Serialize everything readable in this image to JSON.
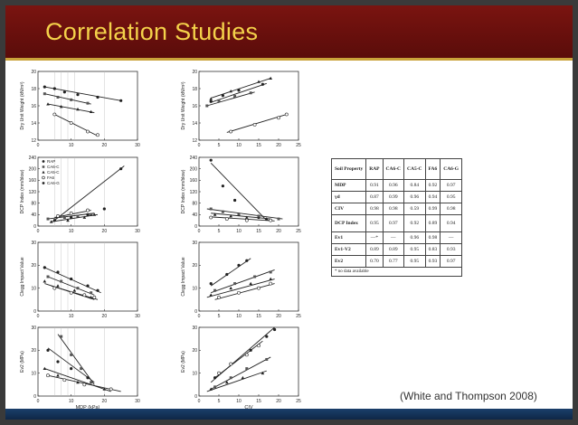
{
  "slide": {
    "title": "Correlation Studies"
  },
  "colors": {
    "title_bar": "#7a1410",
    "title_text": "#f4d24a",
    "accent_line": "#c9a23a",
    "footer_bar": "#1b3f6b"
  },
  "citation": "(White and Thompson 2008)",
  "table": {
    "headers": [
      "Soil Property",
      "RAP",
      "CA6-C",
      "CA5-C",
      "FA6",
      "CA6-G"
    ],
    "rows": [
      [
        "MDP",
        "0.91",
        "0.96",
        "0.84",
        "0.92",
        "0.97"
      ],
      [
        "γd",
        "0.87",
        "0.99",
        "0.96",
        "0.94",
        "0.95"
      ],
      [
        "CIV",
        "0.98",
        "0.98",
        "0.59",
        "0.99",
        "0.98"
      ],
      [
        "DCP Index",
        "0.95",
        "0.97",
        "0.92",
        "0.89",
        "0.94"
      ],
      [
        "Ev1",
        "—*",
        "—",
        "0.96",
        "0.98",
        "—"
      ],
      [
        "Ev1-V2",
        "0.89",
        "0.89",
        "0.95",
        "0.83",
        "0.93"
      ],
      [
        "Ev2",
        "0.70",
        "0.77",
        "0.95",
        "0.93",
        "0.97"
      ]
    ],
    "footnote": "* no data available"
  },
  "chart_data": [
    {
      "type": "scatter",
      "xlabel": "",
      "ylabel": "Dry Unit Weight (kN/m³)",
      "xlim": [
        0,
        30
      ],
      "ylim": [
        12,
        20
      ],
      "xticks": [
        0,
        10,
        20,
        30
      ],
      "yticks": [
        12,
        14,
        16,
        18,
        20
      ],
      "series": [
        {
          "points": [
            [
              2,
              18.2
            ],
            [
              5,
              18.0
            ],
            [
              8,
              17.6
            ],
            [
              12,
              17.3
            ],
            [
              18,
              17.0
            ],
            [
              25,
              16.6
            ]
          ],
          "fit": [
            [
              2,
              18.2
            ],
            [
              25,
              16.6
            ]
          ]
        },
        {
          "points": [
            [
              2,
              17.4
            ],
            [
              6,
              17.0
            ],
            [
              10,
              16.7
            ],
            [
              15,
              16.3
            ]
          ],
          "fit": [
            [
              2,
              17.4
            ],
            [
              16,
              16.2
            ]
          ]
        },
        {
          "points": [
            [
              3,
              16.2
            ],
            [
              7,
              15.9
            ],
            [
              12,
              15.6
            ],
            [
              16,
              15.3
            ]
          ],
          "fit": [
            [
              3,
              16.2
            ],
            [
              17,
              15.2
            ]
          ]
        },
        {
          "points": [
            [
              5,
              15.0
            ],
            [
              10,
              14.0
            ],
            [
              15,
              13.0
            ],
            [
              18,
              12.6
            ]
          ],
          "fit": [
            [
              5,
              15.0
            ],
            [
              18,
              12.5
            ]
          ]
        }
      ]
    },
    {
      "type": "scatter",
      "xlabel": "",
      "ylabel": "Dry Unit Weight (kN/m³)",
      "xlim": [
        0,
        25
      ],
      "ylim": [
        12,
        20
      ],
      "xticks": [
        0,
        5,
        10,
        15,
        20,
        25
      ],
      "yticks": [
        12,
        14,
        16,
        18,
        20
      ],
      "series": [
        {
          "points": [
            [
              3,
              16.5
            ],
            [
              6,
              17.2
            ],
            [
              10,
              17.8
            ],
            [
              16,
              18.5
            ]
          ],
          "fit": [
            [
              3,
              16.4
            ],
            [
              17,
              18.6
            ]
          ]
        },
        {
          "points": [
            [
              2,
              16.0
            ],
            [
              5,
              16.6
            ],
            [
              9,
              17.1
            ],
            [
              13,
              17.5
            ]
          ],
          "fit": [
            [
              2,
              16.0
            ],
            [
              14,
              17.6
            ]
          ]
        },
        {
          "points": [
            [
              3,
              16.8
            ],
            [
              8,
              17.7
            ],
            [
              15,
              18.8
            ],
            [
              18,
              19.2
            ]
          ],
          "fit": [
            [
              3,
              16.9
            ],
            [
              18,
              19.2
            ]
          ]
        },
        {
          "points": [
            [
              8,
              13.0
            ],
            [
              14,
              13.8
            ],
            [
              20,
              14.6
            ],
            [
              22,
              15.0
            ]
          ],
          "fit": [
            [
              7,
              12.9
            ],
            [
              22,
              15.0
            ]
          ]
        }
      ]
    },
    {
      "type": "scatter",
      "xlabel": "",
      "ylabel": "DCP Index (mm/blow)",
      "xlim": [
        0,
        30
      ],
      "ylim": [
        0,
        240
      ],
      "xticks": [
        0,
        10,
        20,
        30
      ],
      "yticks": [
        0,
        40,
        80,
        120,
        160,
        200,
        240
      ],
      "legend": [
        "RAP",
        "CA6-C",
        "CA5-C",
        "FA6",
        "CA6-G"
      ],
      "series": [
        {
          "points": [
            [
              5,
              20
            ],
            [
              10,
              30
            ],
            [
              15,
              40
            ],
            [
              20,
              60
            ],
            [
              25,
              200
            ]
          ],
          "fit": [
            [
              5,
              20
            ],
            [
              26,
              210
            ]
          ]
        },
        {
          "points": [
            [
              3,
              25
            ],
            [
              8,
              30
            ],
            [
              12,
              35
            ],
            [
              16,
              40
            ]
          ],
          "fit": [
            [
              3,
              25
            ],
            [
              17,
              45
            ]
          ]
        },
        {
          "points": [
            [
              4,
              15
            ],
            [
              9,
              20
            ],
            [
              14,
              30
            ],
            [
              17,
              40
            ]
          ],
          "fit": [
            [
              4,
              15
            ],
            [
              18,
              40
            ]
          ]
        },
        {
          "points": [
            [
              6,
              35
            ],
            [
              10,
              45
            ],
            [
              15,
              55
            ]
          ],
          "fit": [
            [
              5,
              30
            ],
            [
              16,
              55
            ]
          ]
        }
      ]
    },
    {
      "type": "scatter",
      "xlabel": "",
      "ylabel": "DCP Index (mm/blow)",
      "xlim": [
        0,
        25
      ],
      "ylim": [
        0,
        240
      ],
      "xticks": [
        0,
        5,
        10,
        15,
        20,
        25
      ],
      "yticks": [
        0,
        40,
        80,
        120,
        160,
        200,
        240
      ],
      "series": [
        {
          "points": [
            [
              3,
              230
            ],
            [
              6,
              140
            ],
            [
              9,
              90
            ],
            [
              15,
              30
            ]
          ],
          "fit": [
            [
              3,
              220
            ],
            [
              17,
              20
            ]
          ]
        },
        {
          "points": [
            [
              3,
              60
            ],
            [
              6,
              50
            ],
            [
              10,
              40
            ],
            [
              15,
              35
            ],
            [
              20,
              25
            ]
          ],
          "fit": [
            [
              2,
              60
            ],
            [
              21,
              25
            ]
          ]
        },
        {
          "points": [
            [
              4,
              40
            ],
            [
              8,
              35
            ],
            [
              12,
              30
            ],
            [
              17,
              25
            ]
          ],
          "fit": [
            [
              3,
              45
            ],
            [
              18,
              25
            ]
          ]
        },
        {
          "points": [
            [
              3,
              30
            ],
            [
              7,
              25
            ],
            [
              12,
              20
            ],
            [
              18,
              20
            ]
          ],
          "fit": [
            [
              3,
              32
            ],
            [
              19,
              18
            ]
          ]
        }
      ]
    },
    {
      "type": "scatter",
      "xlabel": "",
      "ylabel": "Clegg Impact Value",
      "xlim": [
        0,
        30
      ],
      "ylim": [
        0,
        30
      ],
      "xticks": [
        0,
        10,
        20,
        30
      ],
      "yticks": [
        0,
        10,
        20,
        30
      ],
      "series": [
        {
          "points": [
            [
              2,
              19
            ],
            [
              6,
              17
            ],
            [
              10,
              14
            ],
            [
              15,
              11
            ],
            [
              18,
              9
            ]
          ],
          "fit": [
            [
              2,
              19
            ],
            [
              19,
              8
            ]
          ]
        },
        {
          "points": [
            [
              3,
              15
            ],
            [
              7,
              13
            ],
            [
              12,
              10
            ],
            [
              16,
              8
            ]
          ],
          "fit": [
            [
              3,
              15
            ],
            [
              17,
              7
            ]
          ]
        },
        {
          "points": [
            [
              2,
              13
            ],
            [
              6,
              11
            ],
            [
              11,
              9
            ],
            [
              16,
              6
            ]
          ],
          "fit": [
            [
              2,
              12
            ],
            [
              17,
              5
            ]
          ]
        },
        {
          "points": [
            [
              5,
              10
            ],
            [
              10,
              8
            ],
            [
              14,
              7
            ],
            [
              17,
              6
            ]
          ],
          "fit": [
            [
              4,
              11
            ],
            [
              18,
              5
            ]
          ]
        }
      ]
    },
    {
      "type": "scatter",
      "xlabel": "",
      "ylabel": "Clegg Impact Value",
      "xlim": [
        0,
        25
      ],
      "ylim": [
        0,
        30
      ],
      "xticks": [
        0,
        5,
        10,
        15,
        20,
        25
      ],
      "yticks": [
        0,
        10,
        20,
        30
      ],
      "series": [
        {
          "points": [
            [
              3,
              12
            ],
            [
              7,
              16
            ],
            [
              10,
              20
            ],
            [
              12,
              22
            ]
          ],
          "fit": [
            [
              3,
              11
            ],
            [
              13,
              23
            ]
          ]
        },
        {
          "points": [
            [
              4,
              9
            ],
            [
              9,
              12
            ],
            [
              14,
              15
            ],
            [
              18,
              17
            ]
          ],
          "fit": [
            [
              3,
              8
            ],
            [
              19,
              18
            ]
          ]
        },
        {
          "points": [
            [
              3,
              7
            ],
            [
              8,
              10
            ],
            [
              13,
              12
            ],
            [
              18,
              14
            ]
          ],
          "fit": [
            [
              2,
              6
            ],
            [
              19,
              14
            ]
          ]
        },
        {
          "points": [
            [
              5,
              6
            ],
            [
              10,
              8
            ],
            [
              15,
              10
            ],
            [
              18,
              12
            ]
          ],
          "fit": [
            [
              4,
              5
            ],
            [
              19,
              12
            ]
          ]
        }
      ]
    },
    {
      "type": "scatter",
      "xlabel": "MDP (kPa)",
      "ylabel": "Ev2 (MPa)",
      "xlim": [
        0,
        30
      ],
      "ylim": [
        0,
        30
      ],
      "xticks": [
        0,
        10,
        20,
        30
      ],
      "yticks": [
        0,
        10,
        20,
        30
      ],
      "series": [
        {
          "points": [
            [
              3,
              20
            ],
            [
              6,
              15
            ],
            [
              10,
              12
            ],
            [
              15,
              8
            ]
          ],
          "fit": [
            [
              3,
              21
            ],
            [
              17,
              6
            ]
          ]
        },
        {
          "points": [
            [
              7,
              26
            ],
            [
              10,
              18
            ],
            [
              13,
              12
            ],
            [
              16,
              6
            ]
          ],
          "fit": [
            [
              6,
              27
            ],
            [
              17,
              5
            ]
          ]
        },
        {
          "points": [
            [
              2,
              12
            ],
            [
              6,
              9
            ],
            [
              12,
              6
            ],
            [
              20,
              3
            ]
          ],
          "fit": [
            [
              2,
              12
            ],
            [
              22,
              2
            ]
          ]
        },
        {
          "points": [
            [
              3,
              9
            ],
            [
              8,
              7
            ],
            [
              14,
              5
            ],
            [
              22,
              3
            ]
          ],
          "fit": [
            [
              3,
              9
            ],
            [
              25,
              2
            ]
          ]
        }
      ]
    },
    {
      "type": "scatter",
      "xlabel": "CIV",
      "ylabel": "Ev2 (MPa)",
      "xlim": [
        0,
        25
      ],
      "ylim": [
        0,
        30
      ],
      "xticks": [
        0,
        5,
        10,
        15,
        20,
        25
      ],
      "yticks": [
        0,
        10,
        20,
        30
      ],
      "series": [
        {
          "points": [
            [
              4,
              8
            ],
            [
              8,
              14
            ],
            [
              13,
              20
            ],
            [
              17,
              26
            ],
            [
              19,
              29
            ]
          ],
          "fit": [
            [
              3,
              6
            ],
            [
              19,
              30
            ]
          ]
        },
        {
          "points": [
            [
              4,
              4
            ],
            [
              8,
              8
            ],
            [
              12,
              12
            ],
            [
              17,
              16
            ]
          ],
          "fit": [
            [
              3,
              3
            ],
            [
              18,
              17
            ]
          ]
        },
        {
          "points": [
            [
              3,
              3
            ],
            [
              7,
              6
            ],
            [
              11,
              8
            ],
            [
              16,
              10
            ]
          ],
          "fit": [
            [
              2,
              2
            ],
            [
              17,
              11
            ]
          ]
        },
        {
          "points": [
            [
              5,
              10
            ],
            [
              8,
              14
            ],
            [
              12,
              18
            ],
            [
              15,
              22
            ]
          ],
          "fit": [
            [
              4,
              8
            ],
            [
              16,
              24
            ]
          ]
        }
      ]
    }
  ]
}
